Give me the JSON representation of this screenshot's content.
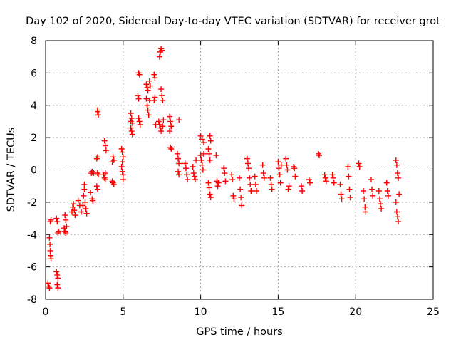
{
  "chart_data": {
    "type": "scatter",
    "title": "Day 102 of 2020, Sidereal Day-to-day VTEC variation (SDTVAR) for receiver grot",
    "xlabel": "GPS time / hours",
    "ylabel": "SDTVAR / TECUs",
    "xlim": [
      0,
      25
    ],
    "ylim": [
      -8,
      8
    ],
    "xticks": [
      0,
      5,
      10,
      15,
      20,
      25
    ],
    "xtick_labels": [
      "0",
      "5",
      "10",
      "15",
      "20",
      "25"
    ],
    "yticks": [
      -8,
      -6,
      -4,
      -2,
      0,
      2,
      4,
      6,
      8
    ],
    "ytick_labels": [
      "-8",
      "-6",
      "-4",
      "-2",
      "0",
      "2",
      "4",
      "6",
      "8"
    ],
    "grid": true,
    "marker": "+",
    "color": "#ff0000",
    "series": [
      {
        "name": "SDTVAR",
        "points": [
          [
            0.15,
            -7.0
          ],
          [
            0.2,
            -7.2
          ],
          [
            0.25,
            -7.3
          ],
          [
            0.3,
            -3.2
          ],
          [
            0.35,
            -3.1
          ],
          [
            0.25,
            -4.2
          ],
          [
            0.28,
            -4.6
          ],
          [
            0.3,
            -5.0
          ],
          [
            0.32,
            -5.3
          ],
          [
            0.35,
            -5.5
          ],
          [
            0.7,
            -6.3
          ],
          [
            0.75,
            -6.5
          ],
          [
            0.8,
            -6.7
          ],
          [
            0.75,
            -7.1
          ],
          [
            0.8,
            -7.3
          ],
          [
            0.7,
            -3.0
          ],
          [
            0.75,
            -3.2
          ],
          [
            0.8,
            -3.9
          ],
          [
            0.85,
            -3.8
          ],
          [
            1.2,
            -3.6
          ],
          [
            1.25,
            -3.8
          ],
          [
            1.3,
            -3.9
          ],
          [
            1.25,
            -2.8
          ],
          [
            1.3,
            -3.1
          ],
          [
            1.35,
            -3.5
          ],
          [
            1.7,
            -2.6
          ],
          [
            1.75,
            -2.3
          ],
          [
            1.8,
            -2.1
          ],
          [
            1.85,
            -2.5
          ],
          [
            1.9,
            -2.8
          ],
          [
            2.1,
            -1.9
          ],
          [
            2.2,
            -2.2
          ],
          [
            2.3,
            -2.6
          ],
          [
            2.4,
            -2.2
          ],
          [
            2.45,
            -1.6
          ],
          [
            2.5,
            -1.2
          ],
          [
            2.5,
            -0.9
          ],
          [
            2.55,
            -2.0
          ],
          [
            2.6,
            -2.4
          ],
          [
            2.65,
            -2.7
          ],
          [
            2.9,
            -1.4
          ],
          [
            3.0,
            -1.8
          ],
          [
            3.05,
            -1.9
          ],
          [
            2.95,
            -0.2
          ],
          [
            3.0,
            -0.1
          ],
          [
            3.1,
            -0.2
          ],
          [
            3.35,
            3.6
          ],
          [
            3.4,
            3.4
          ],
          [
            3.35,
            3.7
          ],
          [
            3.3,
            0.7
          ],
          [
            3.35,
            0.8
          ],
          [
            3.35,
            -0.2
          ],
          [
            3.4,
            -0.3
          ],
          [
            3.3,
            -1.0
          ],
          [
            3.35,
            -1.2
          ],
          [
            3.75,
            -0.3
          ],
          [
            3.8,
            -0.5
          ],
          [
            3.85,
            -0.6
          ],
          [
            3.8,
            1.8
          ],
          [
            3.85,
            1.5
          ],
          [
            3.9,
            1.2
          ],
          [
            3.85,
            -0.2
          ],
          [
            4.3,
            0.5
          ],
          [
            4.35,
            0.8
          ],
          [
            4.4,
            0.6
          ],
          [
            4.3,
            -0.7
          ],
          [
            4.35,
            -0.8
          ],
          [
            4.4,
            -0.9
          ],
          [
            4.9,
            1.3
          ],
          [
            4.95,
            1.1
          ],
          [
            5.0,
            0.8
          ],
          [
            4.9,
            0.2
          ],
          [
            4.95,
            -0.1
          ],
          [
            5.0,
            -0.3
          ],
          [
            5.0,
            -0.6
          ],
          [
            4.95,
            0.5
          ],
          [
            5.5,
            3.5
          ],
          [
            5.55,
            3.2
          ],
          [
            5.6,
            2.9
          ],
          [
            5.5,
            2.6
          ],
          [
            5.55,
            2.4
          ],
          [
            5.6,
            2.2
          ],
          [
            5.5,
            3.0
          ],
          [
            6.0,
            6.0
          ],
          [
            6.05,
            5.9
          ],
          [
            5.95,
            4.6
          ],
          [
            6.0,
            4.4
          ],
          [
            6.05,
            3.0
          ],
          [
            6.1,
            2.8
          ],
          [
            6.0,
            3.2
          ],
          [
            6.5,
            5.3
          ],
          [
            6.55,
            5.1
          ],
          [
            6.6,
            4.9
          ],
          [
            6.5,
            4.4
          ],
          [
            6.55,
            4.0
          ],
          [
            6.6,
            3.7
          ],
          [
            6.65,
            3.4
          ],
          [
            6.7,
            5.5
          ],
          [
            6.75,
            5.2
          ],
          [
            6.7,
            4.3
          ],
          [
            7.0,
            5.9
          ],
          [
            7.05,
            5.7
          ],
          [
            7.0,
            4.3
          ],
          [
            7.05,
            4.5
          ],
          [
            7.1,
            2.8
          ],
          [
            7.35,
            7.0
          ],
          [
            7.4,
            7.3
          ],
          [
            7.45,
            7.5
          ],
          [
            7.5,
            7.4
          ],
          [
            7.3,
            3.0
          ],
          [
            7.35,
            2.8
          ],
          [
            7.4,
            2.6
          ],
          [
            7.45,
            2.4
          ],
          [
            7.5,
            4.6
          ],
          [
            7.55,
            4.3
          ],
          [
            7.45,
            5.0
          ],
          [
            7.55,
            2.7
          ],
          [
            7.6,
            3.1
          ],
          [
            8.0,
            3.3
          ],
          [
            8.05,
            3.0
          ],
          [
            8.1,
            2.7
          ],
          [
            8.0,
            2.4
          ],
          [
            8.05,
            1.4
          ],
          [
            8.1,
            1.3
          ],
          [
            8.6,
            3.1
          ],
          [
            8.5,
            1.0
          ],
          [
            8.55,
            0.7
          ],
          [
            8.6,
            0.4
          ],
          [
            8.55,
            -0.1
          ],
          [
            8.6,
            -0.3
          ],
          [
            9.0,
            0.4
          ],
          [
            9.05,
            0.1
          ],
          [
            9.1,
            -0.3
          ],
          [
            9.15,
            -0.6
          ],
          [
            9.5,
            0.2
          ],
          [
            9.55,
            -0.2
          ],
          [
            9.6,
            -0.4
          ],
          [
            9.65,
            -0.6
          ],
          [
            9.7,
            0.6
          ],
          [
            10.0,
            0.9
          ],
          [
            10.05,
            0.6
          ],
          [
            10.1,
            0.3
          ],
          [
            10.15,
            0.0
          ],
          [
            10.2,
            1.0
          ],
          [
            10.0,
            2.1
          ],
          [
            10.1,
            1.9
          ],
          [
            10.2,
            1.7
          ],
          [
            10.5,
            1.3
          ],
          [
            10.55,
            1.0
          ],
          [
            10.6,
            0.6
          ],
          [
            10.6,
            2.1
          ],
          [
            10.65,
            1.8
          ],
          [
            10.5,
            -0.8
          ],
          [
            10.55,
            -1.1
          ],
          [
            10.6,
            -1.5
          ],
          [
            10.65,
            -1.7
          ],
          [
            11.0,
            0.9
          ],
          [
            11.05,
            -0.7
          ],
          [
            11.1,
            -1.0
          ],
          [
            11.15,
            -0.8
          ],
          [
            11.5,
            0.1
          ],
          [
            11.55,
            -0.2
          ],
          [
            11.6,
            -0.7
          ],
          [
            12.0,
            -0.3
          ],
          [
            12.05,
            -0.6
          ],
          [
            12.1,
            -1.6
          ],
          [
            12.15,
            -1.8
          ],
          [
            12.5,
            -0.5
          ],
          [
            12.55,
            -1.2
          ],
          [
            12.6,
            -1.7
          ],
          [
            12.65,
            -2.2
          ],
          [
            13.0,
            0.7
          ],
          [
            13.05,
            0.4
          ],
          [
            13.1,
            0.1
          ],
          [
            13.15,
            -0.5
          ],
          [
            13.2,
            -0.9
          ],
          [
            13.25,
            -1.3
          ],
          [
            13.5,
            -0.4
          ],
          [
            13.55,
            -0.9
          ],
          [
            13.6,
            -1.3
          ],
          [
            14.0,
            0.3
          ],
          [
            14.05,
            -0.2
          ],
          [
            14.1,
            -0.5
          ],
          [
            14.5,
            -0.5
          ],
          [
            14.55,
            -0.9
          ],
          [
            14.6,
            -1.2
          ],
          [
            15.0,
            0.5
          ],
          [
            15.05,
            0.1
          ],
          [
            15.1,
            -0.3
          ],
          [
            15.15,
            -0.8
          ],
          [
            15.2,
            0.3
          ],
          [
            15.5,
            0.7
          ],
          [
            15.55,
            0.3
          ],
          [
            15.6,
            0.0
          ],
          [
            15.65,
            -1.2
          ],
          [
            15.7,
            -1.0
          ],
          [
            16.0,
            0.2
          ],
          [
            16.05,
            0.1
          ],
          [
            16.1,
            -0.4
          ],
          [
            16.5,
            -1.0
          ],
          [
            16.55,
            -1.3
          ],
          [
            17.0,
            -0.6
          ],
          [
            17.05,
            -0.8
          ],
          [
            17.6,
            1.0
          ],
          [
            17.65,
            0.9
          ],
          [
            18.0,
            -0.3
          ],
          [
            18.05,
            -0.5
          ],
          [
            18.1,
            -0.7
          ],
          [
            18.5,
            -0.3
          ],
          [
            18.55,
            -0.5
          ],
          [
            18.6,
            -0.8
          ],
          [
            19.0,
            -0.9
          ],
          [
            19.05,
            -1.5
          ],
          [
            19.1,
            -1.8
          ],
          [
            19.5,
            0.2
          ],
          [
            19.55,
            -0.4
          ],
          [
            19.6,
            -1.2
          ],
          [
            19.65,
            -1.7
          ],
          [
            20.2,
            0.4
          ],
          [
            20.25,
            0.2
          ],
          [
            20.5,
            -1.3
          ],
          [
            20.55,
            -1.8
          ],
          [
            20.6,
            -2.3
          ],
          [
            20.65,
            -2.6
          ],
          [
            21.0,
            -0.6
          ],
          [
            21.05,
            -1.2
          ],
          [
            21.1,
            -1.6
          ],
          [
            21.5,
            -1.3
          ],
          [
            21.55,
            -1.8
          ],
          [
            21.6,
            -2.1
          ],
          [
            21.65,
            -2.4
          ],
          [
            22.0,
            -0.8
          ],
          [
            22.05,
            -1.3
          ],
          [
            22.1,
            -1.6
          ],
          [
            22.6,
            0.6
          ],
          [
            22.65,
            0.3
          ],
          [
            22.7,
            -0.2
          ],
          [
            22.75,
            -0.5
          ],
          [
            22.6,
            -2.0
          ],
          [
            22.65,
            -2.6
          ],
          [
            22.7,
            -2.9
          ],
          [
            22.75,
            -3.2
          ],
          [
            22.8,
            -1.5
          ]
        ]
      }
    ]
  }
}
